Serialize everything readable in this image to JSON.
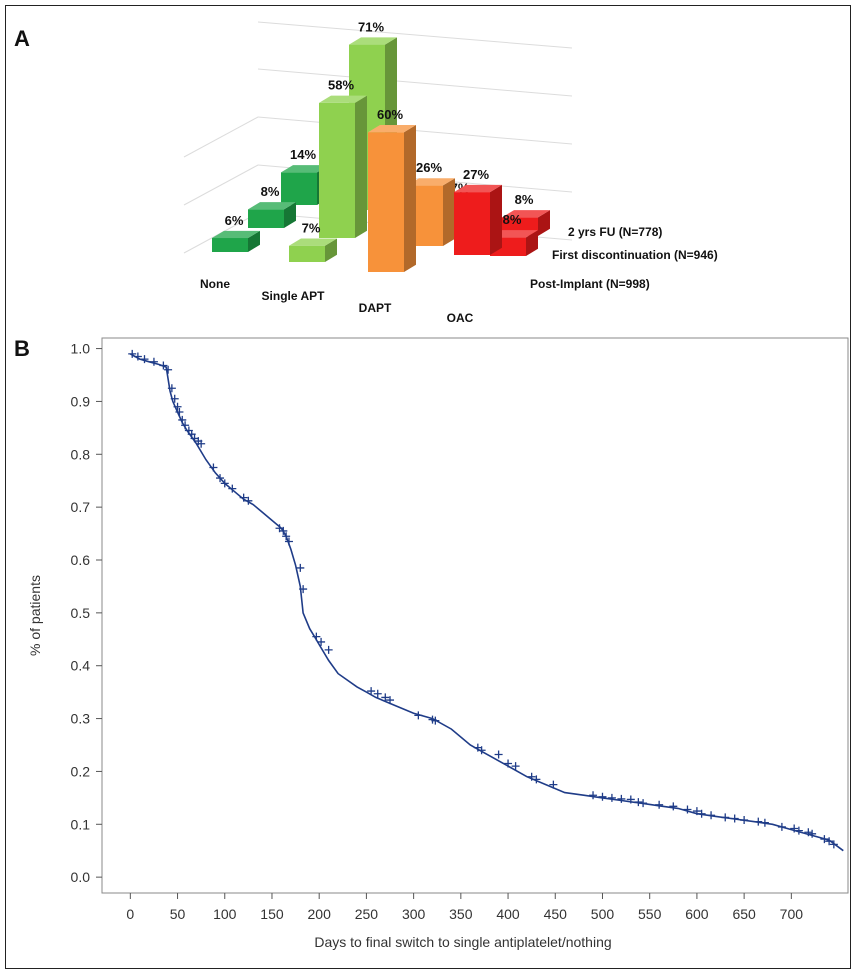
{
  "panels": {
    "a_label": "A",
    "b_label": "B"
  },
  "chart_data": [
    {
      "type": "bar",
      "subtype": "3d-grouped",
      "categories": [
        "None",
        "Single APT",
        "DAPT",
        "OAC"
      ],
      "series": [
        {
          "name": "Post-Implant (N=998)",
          "values": [
            6,
            7,
            60,
            27
          ],
          "labels": [
            "6%",
            "7%",
            "60%",
            "27%"
          ]
        },
        {
          "name": "First discontinuation (N=946)",
          "values": [
            8,
            58,
            26,
            8
          ],
          "labels": [
            "8%",
            "58%",
            "26%",
            "8%"
          ]
        },
        {
          "name": "2 yrs FU (N=778)",
          "values": [
            14,
            71,
            7,
            8
          ],
          "labels": [
            "14%",
            "71%",
            "7%",
            "8%"
          ]
        }
      ],
      "colors": {
        "None": "#1fa54a",
        "Single APT": "#8fd14f",
        "DAPT": "#f7923a",
        "OAC": "#ee1c1c"
      }
    },
    {
      "type": "line",
      "subtype": "step-survival",
      "xlabel": "Days to final switch to single antiplatelet/nothing",
      "ylabel": "% of patients",
      "xlim": [
        -30,
        760
      ],
      "ylim": [
        -0.03,
        1.02
      ],
      "xticks": [
        0,
        50,
        100,
        150,
        200,
        250,
        300,
        350,
        400,
        450,
        500,
        550,
        600,
        650,
        700
      ],
      "yticks": [
        "0.0",
        "0.1",
        "0.2",
        "0.3",
        "0.4",
        "0.5",
        "0.6",
        "0.7",
        "0.8",
        "0.9",
        "1.0"
      ],
      "line_color": "#1f3c88",
      "series": [
        {
          "x": [
            0,
            5,
            10,
            20,
            30,
            38,
            42,
            45,
            50,
            55,
            60,
            70,
            80,
            90,
            100,
            110,
            120,
            130,
            140,
            150,
            160,
            165,
            170,
            175,
            180,
            183,
            190,
            195,
            200,
            210,
            220,
            240,
            250,
            260,
            280,
            300,
            320,
            340,
            360,
            370,
            380,
            400,
            420,
            440,
            460,
            480,
            500,
            520,
            540,
            560,
            580,
            600,
            620,
            640,
            660,
            680,
            700,
            720,
            740,
            755
          ],
          "y": [
            0.99,
            0.985,
            0.98,
            0.975,
            0.97,
            0.965,
            0.92,
            0.9,
            0.88,
            0.86,
            0.845,
            0.82,
            0.79,
            0.765,
            0.745,
            0.73,
            0.715,
            0.705,
            0.69,
            0.675,
            0.66,
            0.645,
            0.62,
            0.59,
            0.55,
            0.5,
            0.47,
            0.455,
            0.44,
            0.41,
            0.385,
            0.36,
            0.35,
            0.34,
            0.325,
            0.31,
            0.3,
            0.28,
            0.25,
            0.24,
            0.23,
            0.21,
            0.19,
            0.175,
            0.16,
            0.155,
            0.15,
            0.145,
            0.14,
            0.135,
            0.13,
            0.12,
            0.115,
            0.11,
            0.105,
            0.1,
            0.09,
            0.08,
            0.07,
            0.05
          ]
        }
      ],
      "censor_marks": {
        "x": [
          2,
          8,
          15,
          25,
          35,
          40,
          44,
          47,
          50,
          52,
          55,
          58,
          62,
          65,
          68,
          72,
          75,
          88,
          95,
          100,
          108,
          120,
          125,
          158,
          162,
          165,
          168,
          180,
          183,
          197,
          202,
          210,
          255,
          262,
          270,
          275,
          305,
          320,
          323,
          368,
          372,
          390,
          400,
          408,
          425,
          430,
          448,
          490,
          500,
          510,
          520,
          530,
          538,
          543,
          560,
          575,
          590,
          600,
          605,
          615,
          630,
          640,
          650,
          665,
          672,
          690,
          703,
          708,
          718,
          722,
          735,
          740,
          745
        ],
        "y": [
          0.99,
          0.985,
          0.98,
          0.975,
          0.968,
          0.96,
          0.925,
          0.905,
          0.89,
          0.88,
          0.865,
          0.855,
          0.845,
          0.838,
          0.83,
          0.825,
          0.82,
          0.775,
          0.755,
          0.745,
          0.735,
          0.718,
          0.712,
          0.66,
          0.655,
          0.645,
          0.635,
          0.585,
          0.545,
          0.455,
          0.445,
          0.43,
          0.352,
          0.347,
          0.34,
          0.335,
          0.306,
          0.298,
          0.296,
          0.245,
          0.24,
          0.232,
          0.215,
          0.21,
          0.19,
          0.185,
          0.175,
          0.155,
          0.152,
          0.15,
          0.148,
          0.147,
          0.142,
          0.14,
          0.137,
          0.134,
          0.128,
          0.125,
          0.12,
          0.117,
          0.113,
          0.111,
          0.108,
          0.105,
          0.103,
          0.095,
          0.092,
          0.088,
          0.085,
          0.082,
          0.072,
          0.068,
          0.062
        ]
      }
    }
  ]
}
